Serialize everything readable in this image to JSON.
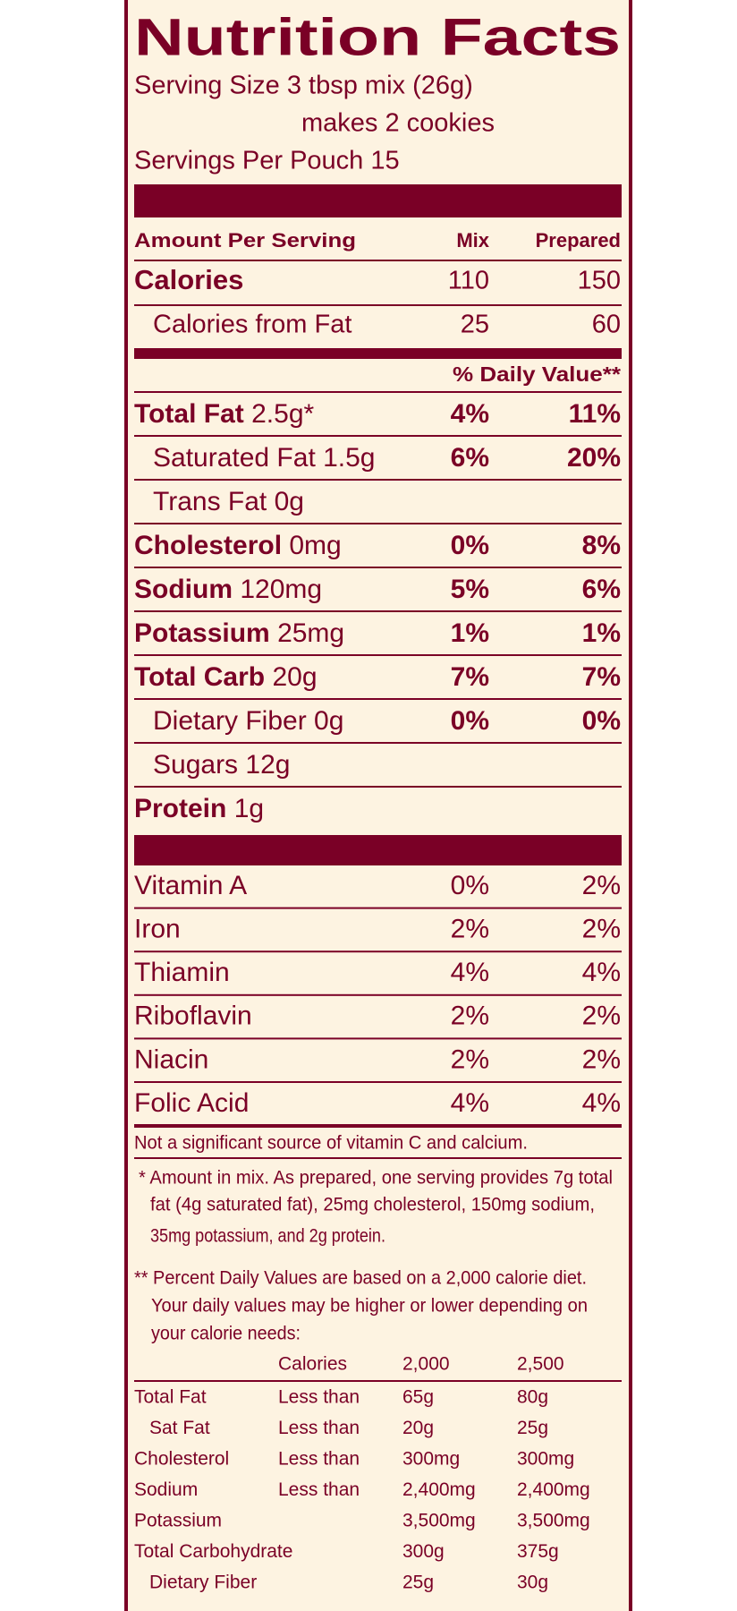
{
  "title": "Nutrition Facts",
  "serving": [
    "Serving Size 3 tbsp mix (26g)",
    "makes 2 cookies",
    "Servings Per Pouch 15"
  ],
  "header": {
    "amount": "Amount Per Serving",
    "mix": "Mix",
    "prepared": "Prepared"
  },
  "calories": [
    {
      "label": "Calories",
      "mix": "110",
      "prepared": "150"
    },
    {
      "label": "Calories from Fat",
      "mix": "25",
      "prepared": "60"
    }
  ],
  "daily_value_header": "% Daily Value**",
  "nutrients": [
    {
      "name": "Total Fat",
      "amount": "2.5g*",
      "mix": "4%",
      "prepared": "11%",
      "sub": [
        {
          "name": "Saturated Fat 1.5g",
          "mix": "6%",
          "prepared": "20%"
        },
        {
          "name": "Trans Fat 0g",
          "mix": null,
          "prepared": null
        }
      ]
    },
    {
      "name": "Cholesterol",
      "amount": "0mg",
      "mix": "0%",
      "prepared": "8%"
    },
    {
      "name": "Sodium",
      "amount": "120mg",
      "mix": "5%",
      "prepared": "6%"
    },
    {
      "name": "Potassium",
      "amount": "25mg",
      "mix": "1%",
      "prepared": "1%"
    },
    {
      "name": "Total Carb",
      "amount": "20g",
      "mix": "7%",
      "prepared": "7%",
      "sub": [
        {
          "name": "Dietary Fiber 0g",
          "mix": "0%",
          "prepared": "0%"
        },
        {
          "name": "Sugars 12g",
          "mix": null,
          "prepared": null
        }
      ]
    },
    {
      "name": "Protein",
      "amount": "1g",
      "mix": null,
      "prepared": null
    }
  ],
  "vitamins": [
    {
      "name": "Vitamin A",
      "mix": "0%",
      "prepared": "2%"
    },
    {
      "name": "Iron",
      "mix": "2%",
      "prepared": "2%"
    },
    {
      "name": "Thiamin",
      "mix": "4%",
      "prepared": "4%"
    },
    {
      "name": "Riboflavin",
      "mix": "2%",
      "prepared": "2%"
    },
    {
      "name": "Niacin",
      "mix": "2%",
      "prepared": "2%"
    },
    {
      "name": "Folic Acid",
      "mix": "4%",
      "prepared": "4%"
    }
  ],
  "note": "Not a significant source of vitamin C and calcium.",
  "footnotes": {
    "star": [
      "* Amount in mix. As prepared, one serving provides 7g total",
      "fat (4g saturated fat), 25mg cholesterol, 150mg sodium,",
      "35mg potassium, and 2g protein."
    ],
    "double_star": [
      "** Percent Daily Values are based on a 2,000 calorie diet.",
      "Your daily values may be higher or lower depending on",
      "your calorie needs:"
    ]
  },
  "dv_table": {
    "header": [
      "Calories",
      "2,000",
      "2,500"
    ],
    "rows": [
      {
        "name": "Total Fat",
        "limit": "Less than",
        "a": "65g",
        "b": "80g",
        "sub": [
          {
            "name": "Sat Fat",
            "limit": "Less than",
            "a": "20g",
            "b": "25g"
          }
        ]
      },
      {
        "name": "Cholesterol",
        "limit": "Less than",
        "a": "300mg",
        "b": "300mg"
      },
      {
        "name": "Sodium",
        "limit": "Less than",
        "a": "2,400mg",
        "b": "2,400mg"
      },
      {
        "name": "Potassium",
        "limit": null,
        "a": "3,500mg",
        "b": "3,500mg"
      },
      {
        "name": "Total Carbohydrate",
        "limit": null,
        "a": "300g",
        "b": "375g",
        "sub": [
          {
            "name": "Dietary Fiber",
            "limit": null,
            "a": "25g",
            "b": "30g"
          }
        ]
      }
    ]
  }
}
